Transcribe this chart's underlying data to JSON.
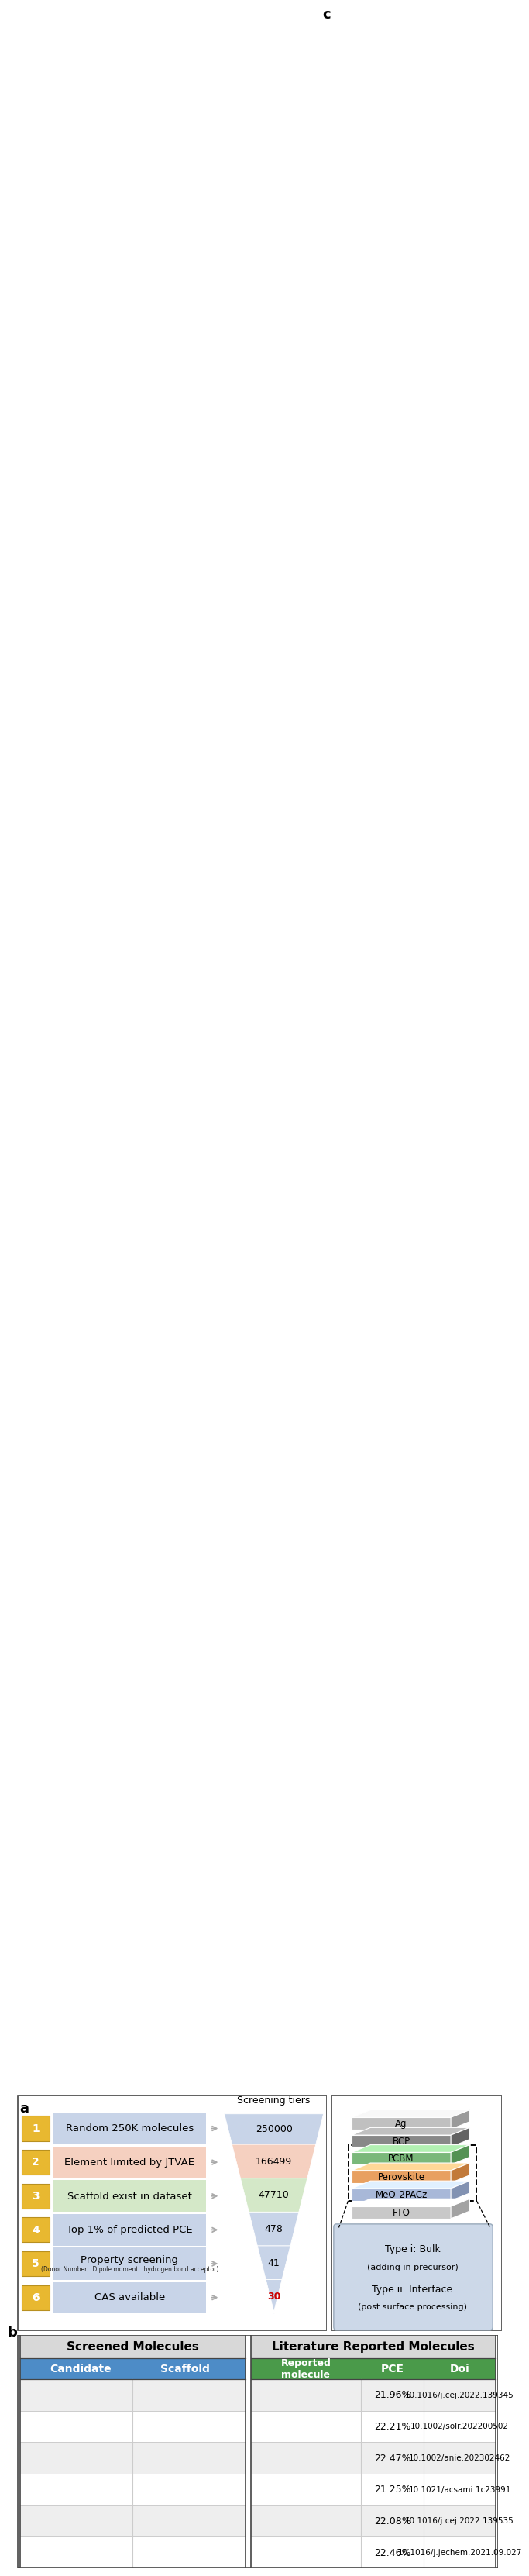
{
  "panel_a_labels": [
    "1",
    "2",
    "3",
    "4",
    "5",
    "6"
  ],
  "panel_a_colors": [
    "#c8d4e8",
    "#f5d0c0",
    "#d4e8c8",
    "#c8d4e8",
    "#c8d4e8",
    "#c8d4e8"
  ],
  "panel_a_texts": [
    "Random 250K molecules",
    "Element limited by JTVAE",
    "Scaffold exist in dataset",
    "Top 1% of predicted PCE",
    "Property screening",
    "CAS available"
  ],
  "panel_a_sub": "(Donor Number,  Dipole moment,  hydrogen bond acceptor)",
  "panel_a_numbers": [
    "250000",
    "166499",
    "47710",
    "478",
    "41",
    "30"
  ],
  "funnel_colors": [
    "#c8d4e8",
    "#f5d0c0",
    "#d4e8c8",
    "#c8d4e8",
    "#c8d4e8",
    "#c8d4e8"
  ],
  "tier_label": "Screening tiers",
  "badge_color": "#e8b830",
  "last_number_color": "#cc0000",
  "screened_header": "Screened Molecules",
  "lit_header": "Literature Reported Molecules",
  "col1_header": "Candidate",
  "col2_header": "Scaffold",
  "col3_header": "Reported\nmolecule",
  "col4_header": "PCE",
  "col5_header": "Doi",
  "pce_values": [
    "21.96%",
    "22.21%",
    "22.47%",
    "21.25%",
    "22.08%",
    "22.46%"
  ],
  "doi_values": [
    "10.1016/j.cej.2022.139345",
    "10.1002/solr.202200502",
    "10.1002/anie.202302462",
    "10.1021/acsami.1c23991",
    "10.1016/j.cej.2022.139535",
    "10.1016/j.jechem.2021.09.027"
  ],
  "table_header_blue": "#4d8cc7",
  "table_header_green": "#4a9a4a",
  "table_row_light": "#eeeeee",
  "table_row_white": "#ffffff",
  "bg_color": "#ffffff",
  "panel_border_color": "#444444",
  "arrow_color": "#aaaaaa",
  "layer_data": [
    [
      "Ag",
      "#c0c0c0",
      8.55,
      0.5
    ],
    [
      "BCP",
      "#888888",
      7.8,
      0.5
    ],
    [
      "PCBM",
      "#7ab87a",
      7.05,
      0.52
    ],
    [
      "Perovskite",
      "#e8a060",
      6.28,
      0.52
    ],
    [
      "MeO-2PACz",
      "#a8b8d8",
      5.52,
      0.52
    ],
    [
      "FTO",
      "#c8c8c8",
      4.76,
      0.52
    ]
  ],
  "type_box_color": "#ccd8e8"
}
